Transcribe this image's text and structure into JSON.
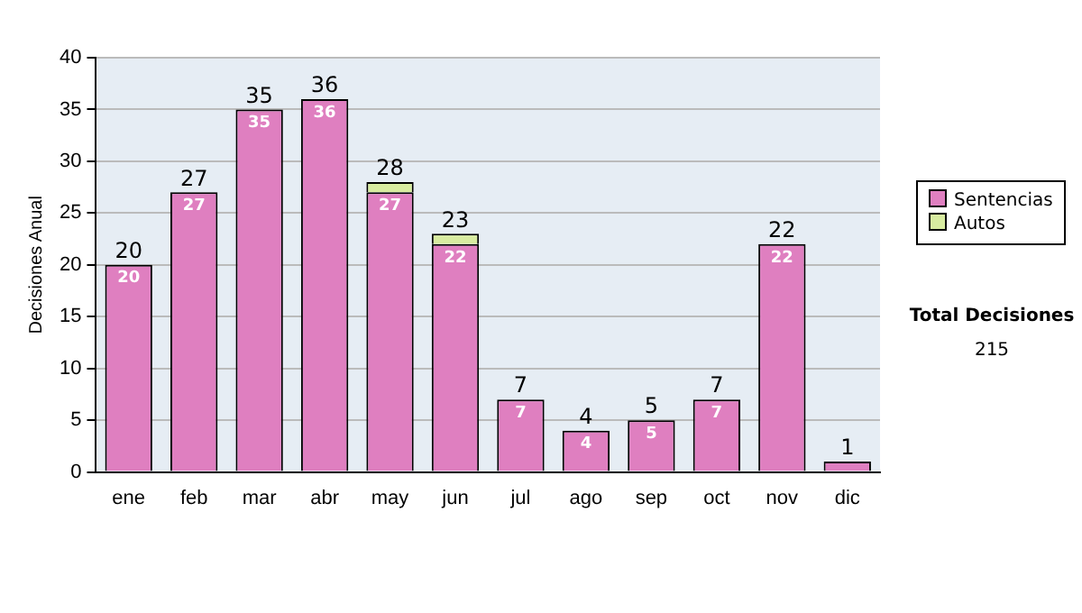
{
  "chart_data": {
    "type": "bar",
    "stacked": true,
    "ylabel": "Decisiones Anual",
    "categories": [
      "ene",
      "feb",
      "mar",
      "abr",
      "may",
      "jun",
      "jul",
      "ago",
      "sep",
      "oct",
      "nov",
      "dic"
    ],
    "series": [
      {
        "name": "Sentencias",
        "color": "#df7fc0",
        "values": [
          20,
          27,
          35,
          36,
          27,
          22,
          7,
          4,
          5,
          7,
          22,
          1
        ],
        "value_labels": [
          "20",
          "27",
          "35",
          "36",
          "27",
          "22",
          "7",
          "4",
          "5",
          "7",
          "22",
          null
        ]
      },
      {
        "name": "Autos",
        "color": "#d8eca0",
        "values": [
          0,
          0,
          0,
          0,
          1,
          1,
          0,
          0,
          0,
          0,
          0,
          0
        ]
      }
    ],
    "totals": [
      "20",
      "27",
      "35",
      "36",
      "28",
      "23",
      "7",
      "4",
      "5",
      "7",
      "22",
      "1"
    ],
    "ylim": [
      0,
      40
    ],
    "yticks": [
      0,
      5,
      10,
      15,
      20,
      25,
      30,
      35,
      40
    ],
    "grid": "y",
    "legend": "right",
    "annotations": [
      "Total Decisiones",
      "215"
    ]
  }
}
